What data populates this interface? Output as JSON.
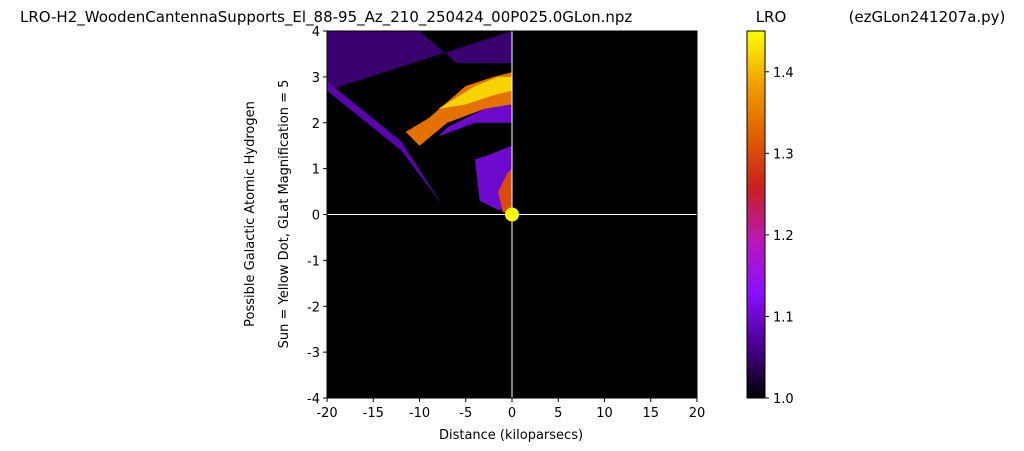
{
  "chart_data": {
    "type": "heatmap",
    "title": "LRO-H2_WoodenCantennaSupports_El_88-95_Az_210_250424_00P025.0GLon.npz",
    "colorbar_title": "LRO",
    "script_label": "(ezGLon241207a.py)",
    "xlabel": "Distance (kiloparsecs)",
    "ylabel_lines": [
      "Possible Galactic Atomic Hydrogen",
      "Sun = Yellow Dot, GLat Magnification = 5"
    ],
    "xlim": [
      -20,
      20
    ],
    "ylim": [
      -4,
      4
    ],
    "x_ticks": [
      "-20",
      "-15",
      "-10",
      "-5",
      "0",
      "5",
      "10",
      "15",
      "20"
    ],
    "y_ticks": [
      "-4",
      "-3",
      "-2",
      "-1",
      "0",
      "1",
      "2",
      "3",
      "4"
    ],
    "colorbar": {
      "range": [
        1.0,
        1.45
      ],
      "ticks": [
        "1.0",
        "1.1",
        "1.2",
        "1.3",
        "1.4"
      ],
      "colormap": "gnuplot",
      "stops": [
        "#000000",
        "#4a0090",
        "#8a10ff",
        "#b818b8",
        "#c82020",
        "#e06000",
        "#f0a000",
        "#ffff00"
      ]
    },
    "sun": {
      "x": 0,
      "y": 0,
      "color": "#ffff00"
    },
    "background_value_color": "#000000",
    "crosshair": {
      "x": 0,
      "y": 0,
      "color": "#ffffff"
    },
    "regions": [
      {
        "name": "outer-haze",
        "x": [
          -20,
          -10,
          -6,
          0,
          0,
          -20
        ],
        "y": [
          4,
          4,
          3.3,
          3.3,
          4,
          2.7
        ],
        "value": 1.05
      },
      {
        "name": "left-wedge",
        "x": [
          -20,
          -20,
          -12,
          -7.5,
          -8.5,
          -12
        ],
        "y": [
          2.9,
          2.7,
          1.4,
          0.2,
          0.5,
          1.6
        ],
        "value": 1.08
      },
      {
        "name": "main-arm",
        "x": [
          -11.5,
          -9,
          -5,
          -2,
          0,
          0,
          -3,
          -7,
          -10
        ],
        "y": [
          1.8,
          2.1,
          2.8,
          3.0,
          3.1,
          2.4,
          2.3,
          2.0,
          1.5
        ],
        "value": 1.34
      },
      {
        "name": "main-arm-core",
        "x": [
          -8,
          -4,
          -1.5,
          0,
          0,
          -2,
          -5
        ],
        "y": [
          2.3,
          2.8,
          3.0,
          3.0,
          2.7,
          2.6,
          2.4
        ],
        "value": 1.42
      },
      {
        "name": "inner-violet",
        "x": [
          -9.5,
          -7,
          -3,
          0,
          0,
          -4,
          -8
        ],
        "y": [
          1.4,
          1.9,
          2.3,
          2.4,
          2.0,
          2.0,
          1.7
        ],
        "value": 1.1
      },
      {
        "name": "inner-blob",
        "x": [
          -4,
          -2.5,
          0,
          0,
          -1.5,
          -3.5
        ],
        "y": [
          1.2,
          1.3,
          1.5,
          0.1,
          0.1,
          0.3
        ],
        "value": 1.1
      },
      {
        "name": "near-sun-arm",
        "x": [
          -1.5,
          -0.5,
          0,
          0,
          -1
        ],
        "y": [
          0.5,
          0.9,
          1.0,
          0.05,
          0.05
        ],
        "value": 1.3
      }
    ]
  }
}
